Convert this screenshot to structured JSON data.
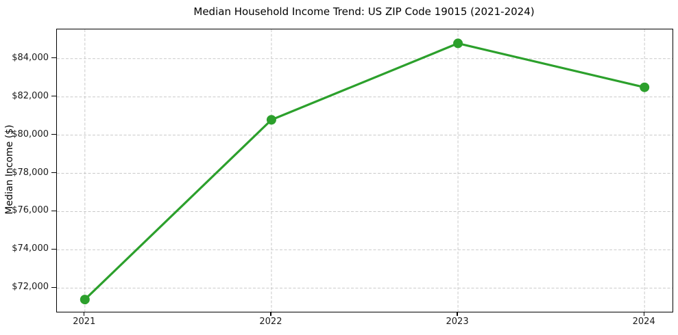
{
  "chart_data": {
    "type": "line",
    "title": "Median Household Income Trend: US ZIP Code 19015 (2021-2024)",
    "ylabel": "Median Income ($)",
    "xlabel": "",
    "categories": [
      "2021",
      "2022",
      "2023",
      "2024"
    ],
    "series": [
      {
        "name": "Median Household Income",
        "values": [
          71400,
          80800,
          84800,
          82500
        ]
      }
    ],
    "yticks": [
      {
        "value": 72000,
        "label": "$72,000"
      },
      {
        "value": 74000,
        "label": "$74,000"
      },
      {
        "value": 76000,
        "label": "$76,000"
      },
      {
        "value": 78000,
        "label": "$78,000"
      },
      {
        "value": 80000,
        "label": "$80,000"
      },
      {
        "value": 82000,
        "label": "$82,000"
      },
      {
        "value": 84000,
        "label": "$84,000"
      }
    ],
    "ylim": [
      70760,
      85530
    ],
    "xlim": [
      -0.15,
      3.15
    ],
    "grid": "dashed-both-axes",
    "legend": "none",
    "colors": {
      "line": "#2ca02c",
      "marker": "#2ca02c",
      "grid": "#c9c9c9",
      "axis": "#000000",
      "text": "#1a1a1a"
    },
    "marker_style": "circle",
    "line_width": 3.2,
    "marker_radius": 7
  }
}
